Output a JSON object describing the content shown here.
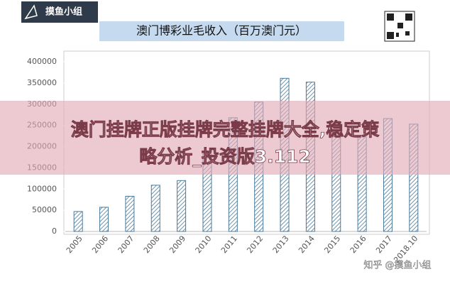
{
  "logo": "摸鱼小组",
  "banner": [
    "澳门挂牌正版挂牌完整挂牌大全,稳定策",
    "略分析_投资版3.112"
  ],
  "watermark": "知乎 @摸鱼小组",
  "chart_data": {
    "type": "bar",
    "title": "澳门博彩业毛收入（百万澳门元）",
    "categories": [
      "2005",
      "2006",
      "2007",
      "2008",
      "2009",
      "2010",
      "2011",
      "2012",
      "2013",
      "2014",
      "2015",
      "2016",
      "2017",
      "2018.10"
    ],
    "values": [
      47000,
      57000,
      83000,
      109000,
      120000,
      189000,
      268000,
      305000,
      361000,
      352000,
      231000,
      223000,
      266000,
      253000
    ],
    "color": "#4a7a9a",
    "ylim": [
      0,
      400000
    ],
    "yticks": [
      0,
      50000,
      100000,
      150000,
      200000,
      250000,
      300000,
      350000,
      400000
    ]
  }
}
